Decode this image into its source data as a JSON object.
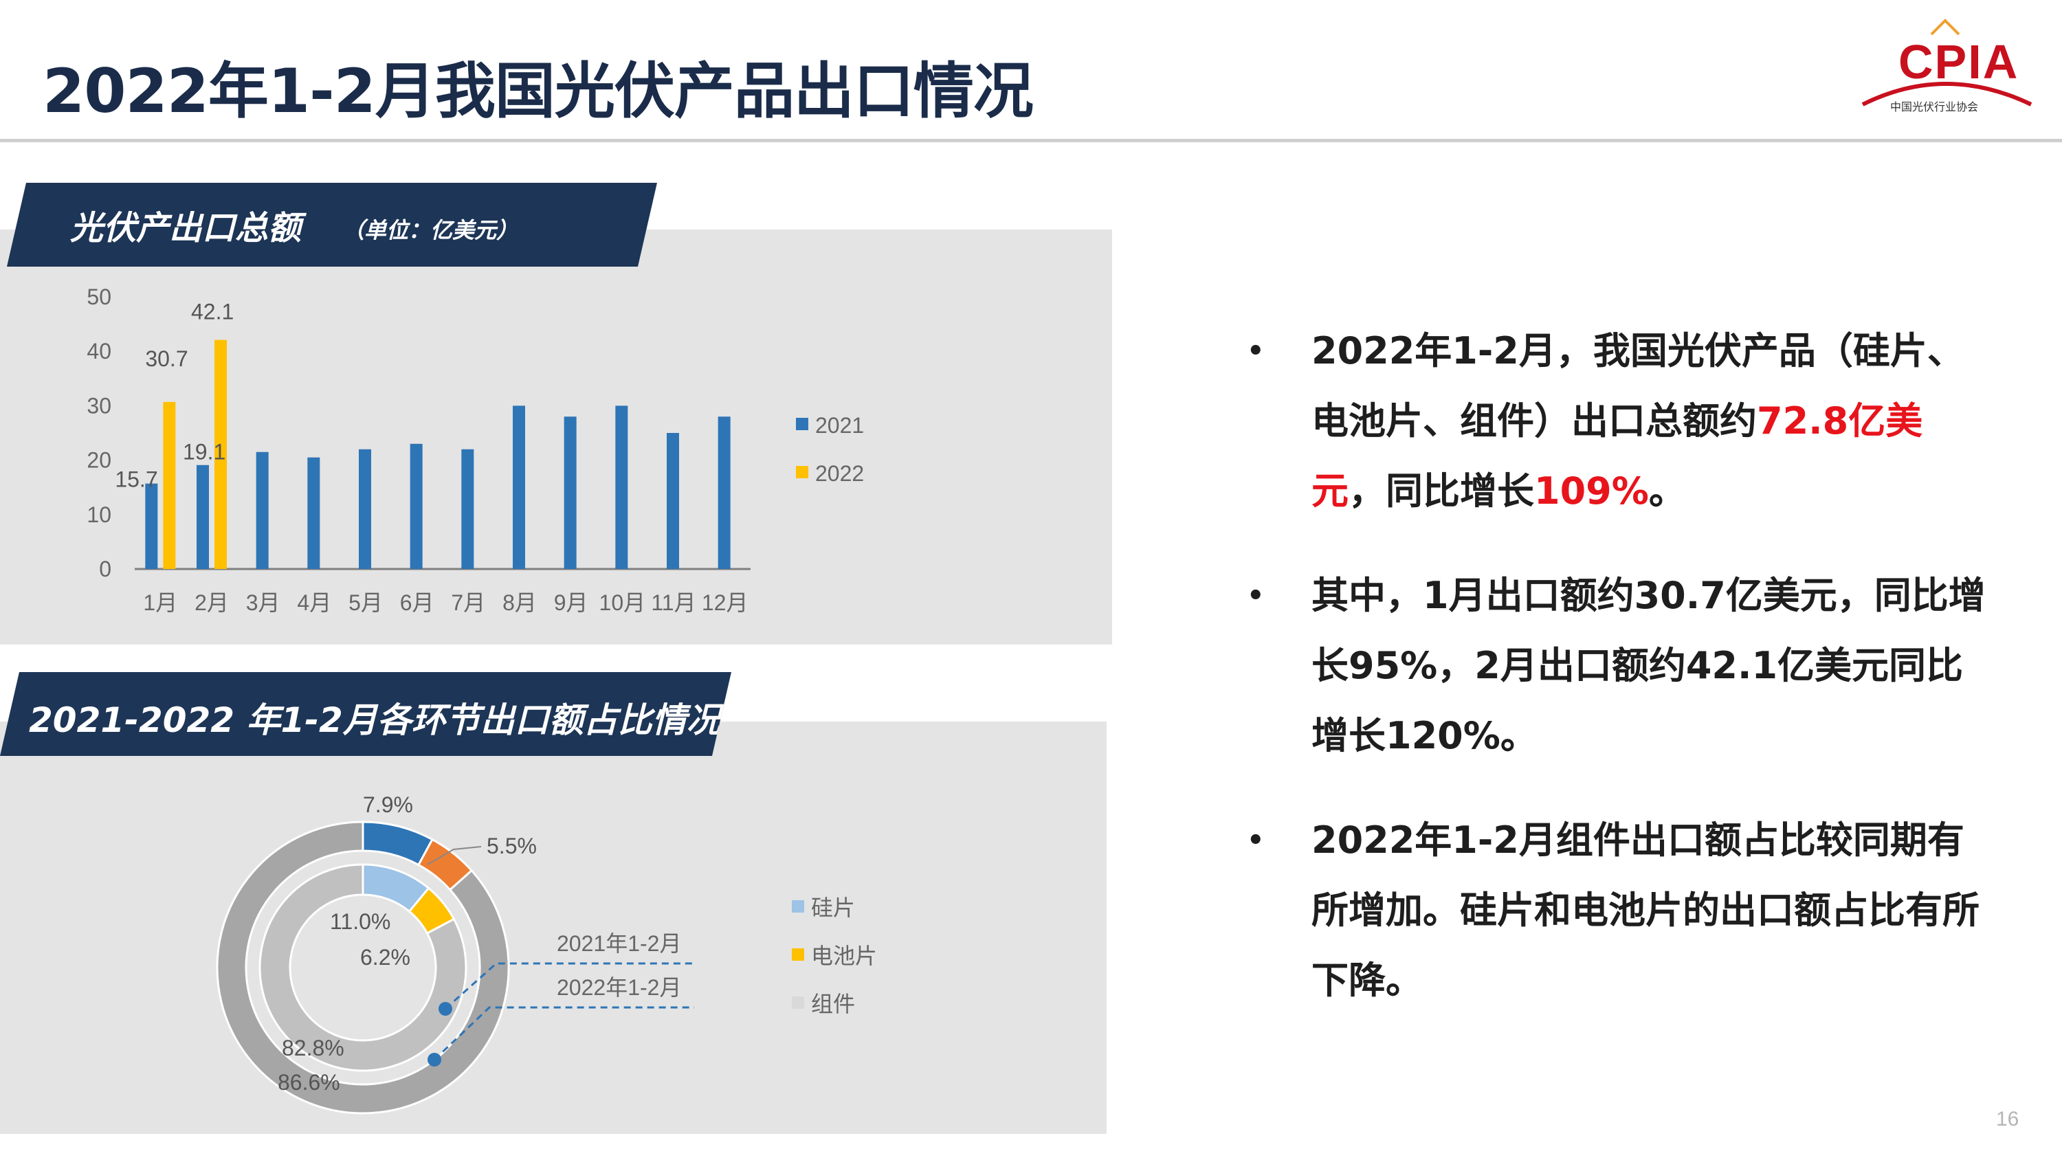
{
  "page": {
    "title": "2022年1-2月我国光伏产品出口情况",
    "page_number": "16"
  },
  "logo": {
    "text": "CPIA",
    "subtitle": "中国光伏行业协会"
  },
  "section1": {
    "banner_title": "光伏产出口总额",
    "banner_unit": "（单位：亿美元）"
  },
  "section2": {
    "banner_title": "2021-2022 年1-2月各环节出口额占比情况"
  },
  "chart_data": [
    {
      "type": "bar",
      "categories": [
        "1月",
        "2月",
        "3月",
        "4月",
        "5月",
        "6月",
        "7月",
        "8月",
        "9月",
        "10月",
        "11月",
        "12月"
      ],
      "series": [
        {
          "name": "2021",
          "color": "#2e75b6",
          "values": [
            15.7,
            19.1,
            21.5,
            20.5,
            22.0,
            23.0,
            22.0,
            30.0,
            28.0,
            30.0,
            25.0,
            28.0
          ]
        },
        {
          "name": "2022",
          "color": "#ffc000",
          "values": [
            30.7,
            42.1,
            null,
            null,
            null,
            null,
            null,
            null,
            null,
            null,
            null,
            null
          ]
        }
      ],
      "data_labels": {
        "2021": [
          "15.7",
          "19.1"
        ],
        "2022": [
          "30.7",
          "42.1"
        ]
      },
      "ylim": [
        0,
        50
      ],
      "yticks": [
        0,
        10,
        20,
        30,
        40,
        50
      ],
      "legend_position": "right",
      "grid": false
    },
    {
      "type": "pie",
      "variant": "donut",
      "categories": [
        "硅片",
        "电池片",
        "组件"
      ],
      "colors": [
        "#9dc3e6",
        "#ffc000",
        "#d9d9d9"
      ],
      "series": [
        {
          "name": "2021年1-2月",
          "values": [
            11.0,
            6.2,
            82.8
          ],
          "value_labels": [
            "11.0%",
            "6.2%",
            "82.8%"
          ]
        },
        {
          "name": "2022年1-2月",
          "values": [
            7.9,
            5.5,
            86.6
          ],
          "value_labels": [
            "7.9%",
            "5.5%",
            "86.6%"
          ]
        }
      ],
      "legend_position": "right"
    }
  ],
  "bullets": [
    {
      "parts": [
        {
          "text": "2022年1-2月，我国光伏产品（硅片、电池片、组件）出口总额约",
          "highlight": false
        },
        {
          "text": "72.8亿美元",
          "highlight": true
        },
        {
          "text": "，同比增长",
          "highlight": false
        },
        {
          "text": "109%",
          "highlight": true
        },
        {
          "text": "。",
          "highlight": false
        }
      ]
    },
    {
      "parts": [
        {
          "text": "其中，1月出口额约30.7亿美元，同比增长95%，2月出口额约42.1亿美元同比增长120%。",
          "highlight": false
        }
      ]
    },
    {
      "parts": [
        {
          "text": "2022年1-2月组件出口额占比较同期有所增加。硅片和电池片的出口额占比有所下降。",
          "highlight": false
        }
      ]
    }
  ],
  "colors": {
    "banner": "#1d3556",
    "panel": "#e4e4e4",
    "highlight": "#e8141c",
    "logo_red": "#c8101e"
  }
}
